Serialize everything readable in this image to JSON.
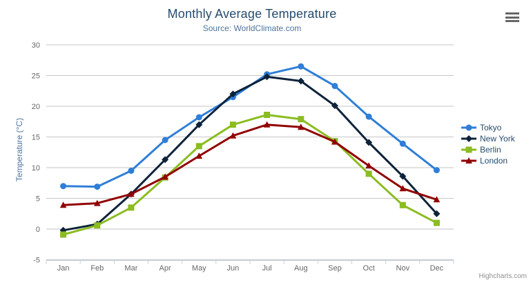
{
  "chart": {
    "title": "Monthly Average Temperature",
    "subtitle": "Source: WorldClimate.com",
    "y_axis_title": "Temperature (°C)",
    "credits": "Highcharts.com",
    "context_menu_icon": "hamburger-icon"
  },
  "colors": {
    "title": "#274b6d",
    "subtitle": "#4d759e",
    "axis_title": "#4d759e",
    "tick_label": "#666666",
    "gridline": "#c6c6c6",
    "axis_line": "#c0d0e0",
    "legend_text": "#274b6d",
    "credits_text": "#909090"
  },
  "chart_data": {
    "type": "line",
    "title": "Monthly Average Temperature",
    "subtitle": "Source: WorldClimate.com",
    "xlabel": "",
    "ylabel": "Temperature (°C)",
    "ylim": [
      -5,
      30
    ],
    "y_tick_step": 5,
    "grid": true,
    "legend_position": "right",
    "categories": [
      "Jan",
      "Feb",
      "Mar",
      "Apr",
      "May",
      "Jun",
      "Jul",
      "Aug",
      "Sep",
      "Oct",
      "Nov",
      "Dec"
    ],
    "y_tick_labels": [
      "-5",
      "0",
      "5",
      "10",
      "15",
      "20",
      "25",
      "30"
    ],
    "series": [
      {
        "name": "Tokyo",
        "color": "#2f7ed8",
        "marker": "circle",
        "values": [
          7.0,
          6.9,
          9.5,
          14.5,
          18.2,
          21.5,
          25.2,
          26.5,
          23.3,
          18.3,
          13.9,
          9.6
        ]
      },
      {
        "name": "New York",
        "color": "#0d233a",
        "marker": "diamond",
        "values": [
          -0.2,
          0.8,
          5.7,
          11.3,
          17.0,
          22.0,
          24.8,
          24.1,
          20.1,
          14.1,
          8.6,
          2.5
        ]
      },
      {
        "name": "Berlin",
        "color": "#8bbc21",
        "marker": "square",
        "values": [
          -0.9,
          0.6,
          3.5,
          8.4,
          13.5,
          17.0,
          18.6,
          17.9,
          14.3,
          9.0,
          3.9,
          1.0
        ]
      },
      {
        "name": "London",
        "color": "#910000",
        "marker": "triangle",
        "values": [
          3.9,
          4.2,
          5.7,
          8.5,
          11.9,
          15.2,
          17.0,
          16.6,
          14.2,
          10.3,
          6.6,
          4.8
        ]
      }
    ]
  }
}
